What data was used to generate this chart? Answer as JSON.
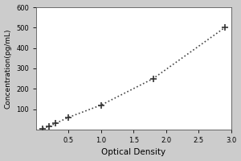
{
  "x_data": [
    0.1,
    0.2,
    0.3,
    0.5,
    1.0,
    1.8,
    2.9
  ],
  "y_data": [
    5,
    15,
    30,
    60,
    120,
    250,
    500
  ],
  "xlabel": "Optical Density",
  "ylabel": "Concentration(pg/mL)",
  "xlim": [
    0,
    3.0
  ],
  "ylim": [
    0,
    600
  ],
  "xticks": [
    0.5,
    1,
    1.5,
    2,
    2.5,
    3
  ],
  "yticks": [
    100,
    200,
    300,
    400,
    500,
    600
  ],
  "line_color": "#444444",
  "marker_color": "#333333",
  "background_color": "#cccccc",
  "plot_background": "#ffffff",
  "line_style": ":",
  "line_width": 1.2,
  "marker_size": 6,
  "marker_ew": 1.2,
  "xlabel_fontsize": 7.5,
  "ylabel_fontsize": 6.5,
  "tick_fontsize": 6
}
